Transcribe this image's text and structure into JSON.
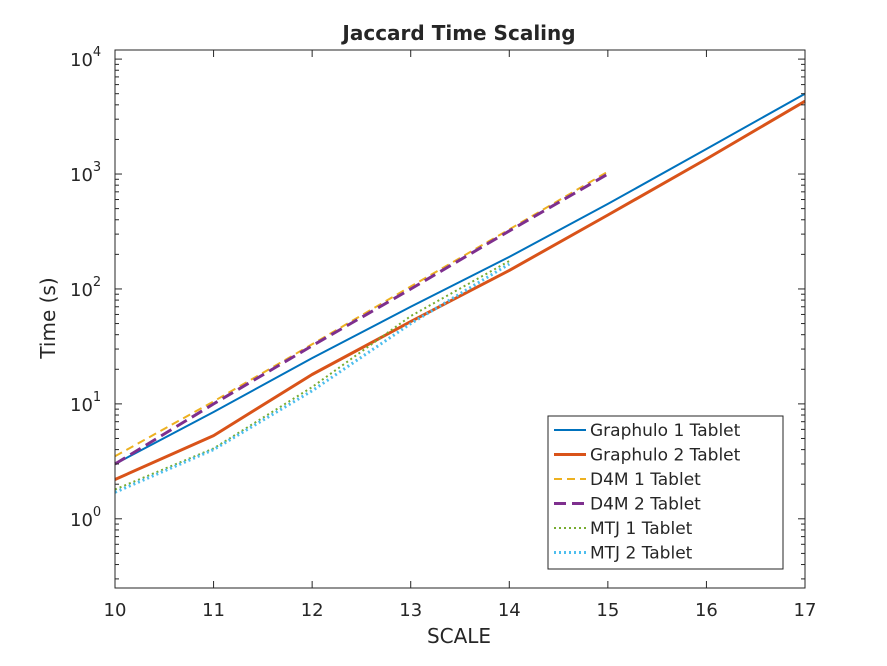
{
  "chart_data": {
    "type": "line",
    "title": "Jaccard Time Scaling",
    "xlabel": "SCALE",
    "ylabel": "Time (s)",
    "xlim": [
      10,
      17
    ],
    "ylim": [
      0.25,
      12000
    ],
    "yscale": "log",
    "grid": false,
    "legend_position": "bottom-right",
    "x_ticks": [
      10,
      11,
      12,
      13,
      14,
      15,
      16,
      17
    ],
    "y_ticks": [
      {
        "value": 1,
        "base": "10",
        "exp": "0"
      },
      {
        "value": 10,
        "base": "10",
        "exp": "1"
      },
      {
        "value": 100,
        "base": "10",
        "exp": "2"
      },
      {
        "value": 1000,
        "base": "10",
        "exp": "3"
      },
      {
        "value": 10000,
        "base": "10",
        "exp": "4"
      }
    ],
    "series": [
      {
        "name": "Graphulo 1 Tablet",
        "color": "#0072BD",
        "dash": "solid",
        "width": 2,
        "x": [
          10,
          11,
          12,
          13,
          14,
          15,
          16,
          17
        ],
        "y": [
          3.0,
          8.5,
          25,
          70,
          190,
          550,
          1650,
          5000
        ]
      },
      {
        "name": "Graphulo 2 Tablet",
        "color": "#D95319",
        "dash": "solid",
        "width": 3,
        "x": [
          10,
          11,
          12,
          13,
          14,
          15,
          16,
          17
        ],
        "y": [
          2.2,
          5.3,
          18,
          52,
          145,
          440,
          1350,
          4300
        ]
      },
      {
        "name": "D4M 1 Tablet",
        "color": "#EDB120",
        "dash": "dashed",
        "width": 2,
        "x": [
          10,
          11,
          12,
          13,
          14,
          15
        ],
        "y": [
          3.5,
          10.5,
          33,
          105,
          330,
          1050
        ]
      },
      {
        "name": "D4M 2 Tablet",
        "color": "#7E2F8E",
        "dash": "longdash",
        "width": 3,
        "x": [
          10,
          11,
          12,
          13,
          14,
          15
        ],
        "y": [
          3.0,
          10.0,
          32,
          100,
          320,
          1000
        ]
      },
      {
        "name": "MTJ 1 Tablet",
        "color": "#77AC30",
        "dash": "dotted",
        "width": 2,
        "x": [
          10,
          11,
          12,
          13,
          14
        ],
        "y": [
          1.8,
          4.1,
          14,
          58,
          175
        ]
      },
      {
        "name": "MTJ 2 Tablet",
        "color": "#4DBEEE",
        "dash": "dotted",
        "width": 3,
        "x": [
          10,
          11,
          12,
          13,
          14
        ],
        "y": [
          1.7,
          4.0,
          13,
          50,
          165
        ]
      }
    ]
  }
}
